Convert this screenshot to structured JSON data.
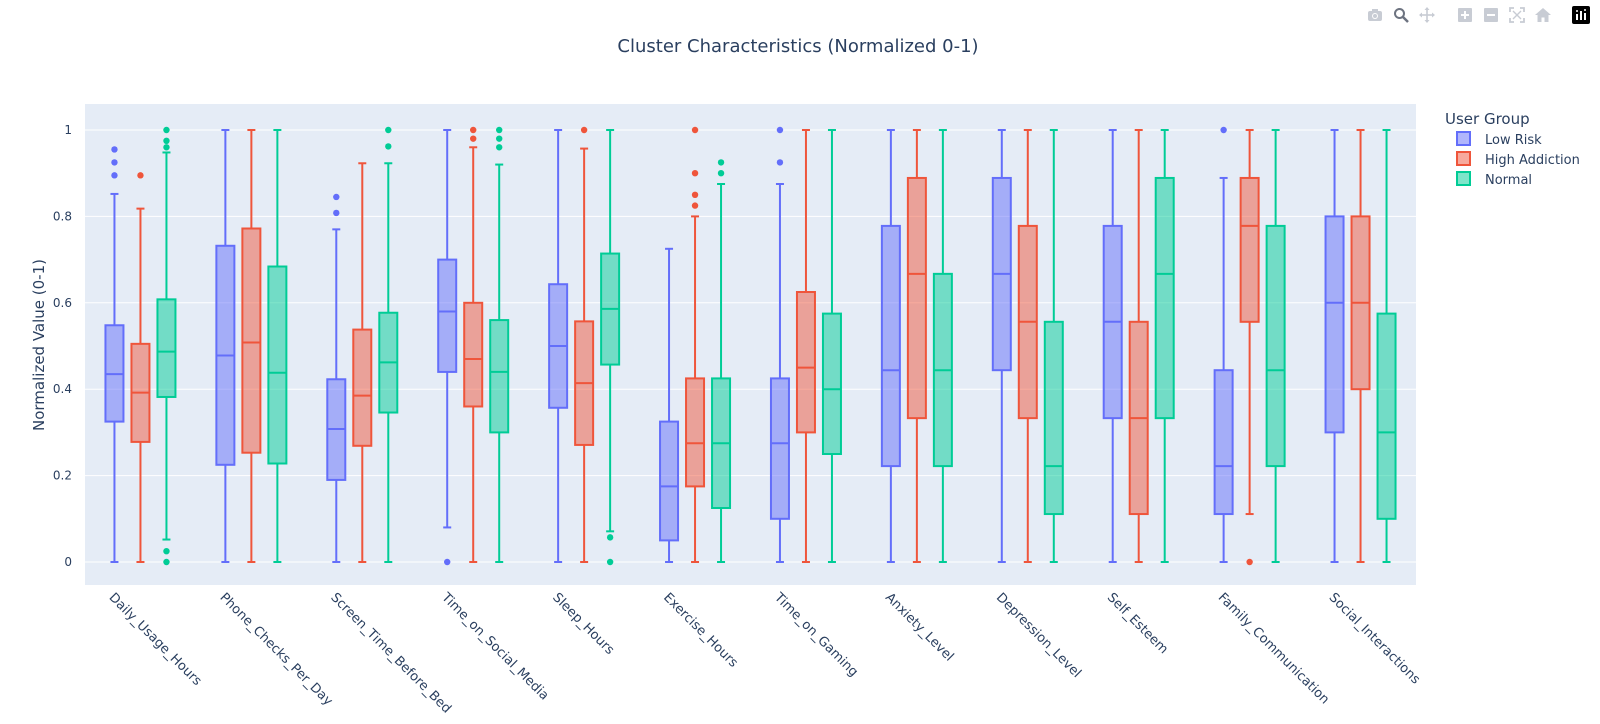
{
  "toolbar": {
    "items": [
      {
        "name": "camera-icon",
        "label": "Download plot as a png"
      },
      {
        "name": "zoom-icon",
        "label": "Zoom"
      },
      {
        "name": "pan-icon",
        "label": "Pan"
      },
      {
        "name": "zoom-in-icon",
        "label": "Zoom in"
      },
      {
        "name": "zoom-out-icon",
        "label": "Zoom out"
      },
      {
        "name": "autoscale-icon",
        "label": "Autoscale"
      },
      {
        "name": "home-icon",
        "label": "Reset axes"
      },
      {
        "name": "plotly-logo-icon",
        "label": "Produced with Plotly"
      }
    ]
  },
  "chart_data": {
    "type": "box",
    "title": "Cluster Characteristics (Normalized 0-1)",
    "xlabel": "",
    "ylabel": "Normalized Value (0-1)",
    "ylim": [
      0,
      1
    ],
    "yticks": [
      "0",
      "0.2",
      "0.4",
      "0.6",
      "0.8",
      "1"
    ],
    "ytick_values": [
      0,
      0.2,
      0.4,
      0.6,
      0.8,
      1
    ],
    "grid": true,
    "legend": {
      "title": "User Group",
      "placement": "top-right"
    },
    "categories": [
      "Daily_Usage_Hours",
      "Phone_Checks_Per_Day",
      "Screen_Time_Before_Bed",
      "Time_on_Social_Media",
      "Sleep_Hours",
      "Exercise_Hours",
      "Time_on_Gaming",
      "Anxiety_Level",
      "Depression_Level",
      "Self_Esteem",
      "Family_Communication",
      "Social_Interactions"
    ],
    "colors": {
      "Low Risk": "#636efa",
      "High Addiction": "#ef553b",
      "Normal": "#00cc96"
    },
    "series": [
      {
        "name": "Low Risk",
        "boxes": [
          {
            "lowerfence": 0.0,
            "q1": 0.325,
            "median": 0.435,
            "q3": 0.548,
            "upperfence": 0.852,
            "outliers": [
              0.895,
              0.925,
              0.955
            ]
          },
          {
            "lowerfence": 0.0,
            "q1": 0.225,
            "median": 0.478,
            "q3": 0.732,
            "upperfence": 1.0,
            "outliers": []
          },
          {
            "lowerfence": 0.0,
            "q1": 0.19,
            "median": 0.308,
            "q3": 0.423,
            "upperfence": 0.77,
            "outliers": [
              0.808,
              0.845
            ]
          },
          {
            "lowerfence": 0.08,
            "q1": 0.44,
            "median": 0.58,
            "q3": 0.7,
            "upperfence": 1.0,
            "outliers": [
              0.0
            ]
          },
          {
            "lowerfence": 0.0,
            "q1": 0.357,
            "median": 0.5,
            "q3": 0.643,
            "upperfence": 1.0,
            "outliers": []
          },
          {
            "lowerfence": 0.0,
            "q1": 0.05,
            "median": 0.175,
            "q3": 0.325,
            "upperfence": 0.725,
            "outliers": []
          },
          {
            "lowerfence": 0.0,
            "q1": 0.1,
            "median": 0.275,
            "q3": 0.425,
            "upperfence": 0.875,
            "outliers": [
              0.925,
              1.0
            ]
          },
          {
            "lowerfence": 0.0,
            "q1": 0.222,
            "median": 0.444,
            "q3": 0.778,
            "upperfence": 1.0,
            "outliers": []
          },
          {
            "lowerfence": 0.0,
            "q1": 0.444,
            "median": 0.667,
            "q3": 0.889,
            "upperfence": 1.0,
            "outliers": []
          },
          {
            "lowerfence": 0.0,
            "q1": 0.333,
            "median": 0.556,
            "q3": 0.778,
            "upperfence": 1.0,
            "outliers": []
          },
          {
            "lowerfence": 0.0,
            "q1": 0.111,
            "median": 0.222,
            "q3": 0.444,
            "upperfence": 0.889,
            "outliers": [
              1.0
            ]
          },
          {
            "lowerfence": 0.0,
            "q1": 0.3,
            "median": 0.6,
            "q3": 0.8,
            "upperfence": 1.0,
            "outliers": []
          }
        ]
      },
      {
        "name": "High Addiction",
        "boxes": [
          {
            "lowerfence": 0.0,
            "q1": 0.278,
            "median": 0.392,
            "q3": 0.505,
            "upperfence": 0.818,
            "outliers": [
              0.895
            ]
          },
          {
            "lowerfence": 0.0,
            "q1": 0.253,
            "median": 0.508,
            "q3": 0.772,
            "upperfence": 1.0,
            "outliers": []
          },
          {
            "lowerfence": 0.0,
            "q1": 0.269,
            "median": 0.385,
            "q3": 0.538,
            "upperfence": 0.923,
            "outliers": []
          },
          {
            "lowerfence": 0.0,
            "q1": 0.36,
            "median": 0.47,
            "q3": 0.6,
            "upperfence": 0.96,
            "outliers": [
              0.98,
              1.0
            ]
          },
          {
            "lowerfence": 0.0,
            "q1": 0.271,
            "median": 0.414,
            "q3": 0.557,
            "upperfence": 0.957,
            "outliers": [
              1.0
            ]
          },
          {
            "lowerfence": 0.0,
            "q1": 0.175,
            "median": 0.275,
            "q3": 0.425,
            "upperfence": 0.8,
            "outliers": [
              0.825,
              0.85,
              0.9,
              1.0
            ]
          },
          {
            "lowerfence": 0.0,
            "q1": 0.3,
            "median": 0.45,
            "q3": 0.625,
            "upperfence": 1.0,
            "outliers": []
          },
          {
            "lowerfence": 0.0,
            "q1": 0.333,
            "median": 0.667,
            "q3": 0.889,
            "upperfence": 1.0,
            "outliers": []
          },
          {
            "lowerfence": 0.0,
            "q1": 0.333,
            "median": 0.556,
            "q3": 0.778,
            "upperfence": 1.0,
            "outliers": []
          },
          {
            "lowerfence": 0.0,
            "q1": 0.111,
            "median": 0.333,
            "q3": 0.556,
            "upperfence": 1.0,
            "outliers": []
          },
          {
            "lowerfence": 0.111,
            "q1": 0.556,
            "median": 0.778,
            "q3": 0.889,
            "upperfence": 1.0,
            "outliers": [
              0.0
            ]
          },
          {
            "lowerfence": 0.0,
            "q1": 0.4,
            "median": 0.6,
            "q3": 0.8,
            "upperfence": 1.0,
            "outliers": []
          }
        ]
      },
      {
        "name": "Normal",
        "boxes": [
          {
            "lowerfence": 0.052,
            "q1": 0.382,
            "median": 0.487,
            "q3": 0.608,
            "upperfence": 0.948,
            "outliers": [
              0.0,
              0.025,
              0.96,
              0.975,
              1.0
            ]
          },
          {
            "lowerfence": 0.0,
            "q1": 0.228,
            "median": 0.438,
            "q3": 0.684,
            "upperfence": 1.0,
            "outliers": []
          },
          {
            "lowerfence": 0.0,
            "q1": 0.346,
            "median": 0.462,
            "q3": 0.577,
            "upperfence": 0.923,
            "outliers": [
              0.962,
              1.0
            ]
          },
          {
            "lowerfence": 0.0,
            "q1": 0.3,
            "median": 0.44,
            "q3": 0.56,
            "upperfence": 0.92,
            "outliers": [
              0.96,
              0.98,
              1.0
            ]
          },
          {
            "lowerfence": 0.071,
            "q1": 0.457,
            "median": 0.586,
            "q3": 0.714,
            "upperfence": 1.0,
            "outliers": [
              0.0,
              0.057
            ]
          },
          {
            "lowerfence": 0.0,
            "q1": 0.125,
            "median": 0.275,
            "q3": 0.425,
            "upperfence": 0.875,
            "outliers": [
              0.9,
              0.925
            ]
          },
          {
            "lowerfence": 0.0,
            "q1": 0.25,
            "median": 0.4,
            "q3": 0.575,
            "upperfence": 1.0,
            "outliers": []
          },
          {
            "lowerfence": 0.0,
            "q1": 0.222,
            "median": 0.444,
            "q3": 0.667,
            "upperfence": 1.0,
            "outliers": []
          },
          {
            "lowerfence": 0.0,
            "q1": 0.111,
            "median": 0.222,
            "q3": 0.556,
            "upperfence": 1.0,
            "outliers": []
          },
          {
            "lowerfence": 0.0,
            "q1": 0.333,
            "median": 0.667,
            "q3": 0.889,
            "upperfence": 1.0,
            "outliers": []
          },
          {
            "lowerfence": 0.0,
            "q1": 0.222,
            "median": 0.444,
            "q3": 0.778,
            "upperfence": 1.0,
            "outliers": []
          },
          {
            "lowerfence": 0.0,
            "q1": 0.1,
            "median": 0.3,
            "q3": 0.575,
            "upperfence": 1.0,
            "outliers": []
          }
        ]
      }
    ]
  }
}
